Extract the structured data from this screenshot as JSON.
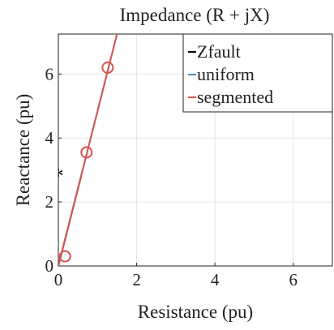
{
  "chart_data": {
    "type": "line",
    "title": "Impedance (R + jX)",
    "xlabel": "Resistance (pu)",
    "ylabel": "Reactance (pu)",
    "xlim": [
      0,
      7
    ],
    "ylim": [
      0,
      7.25
    ],
    "xticks": [
      0,
      2,
      4,
      6
    ],
    "yticks": [
      0,
      2,
      4,
      6
    ],
    "grid": true,
    "legend": "upper right",
    "series": [
      {
        "name": "Zfault",
        "color": "#000000",
        "x": [
          0,
          0.58
        ],
        "values": [
          0,
          2.8
        ]
      },
      {
        "name": "uniform",
        "color": "#4a8fb8",
        "x": [
          0,
          1.55
        ],
        "values": [
          0,
          7.5
        ]
      },
      {
        "name": "segmented",
        "color": "#d9534f",
        "x": [
          0,
          1.55
        ],
        "values": [
          0,
          7.5
        ],
        "marker_x": [
          0.17,
          0.72,
          1.26
        ],
        "marker_values": [
          0.3,
          3.55,
          6.2
        ]
      },
      {
        "color": "#000000",
        "marker": "*",
        "x": [
          0
        ],
        "values": [
          2.85
        ]
      }
    ]
  }
}
